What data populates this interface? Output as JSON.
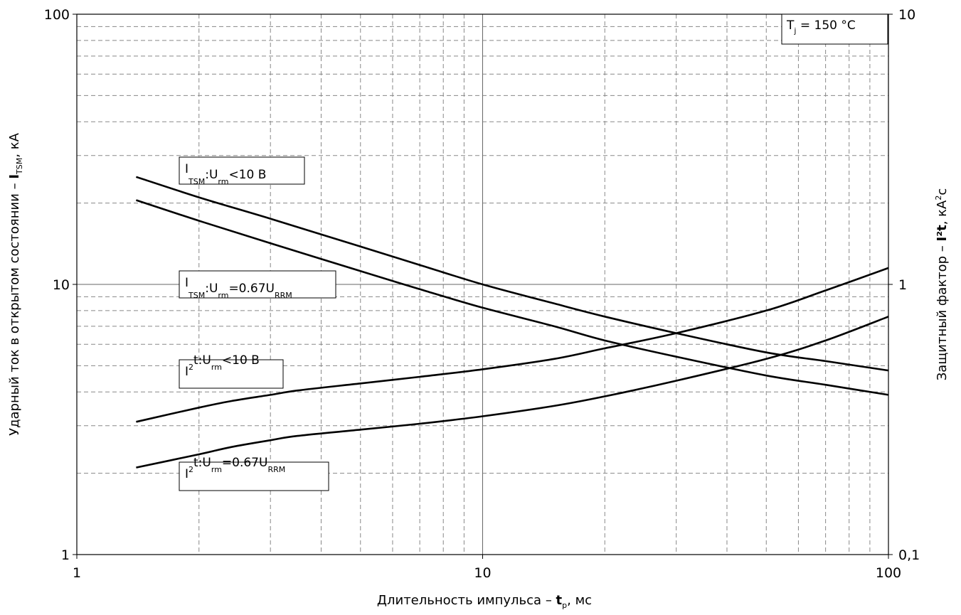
{
  "chart_data": {
    "type": "line",
    "x_scale": "log",
    "y_scale": "log",
    "y2_scale": "log",
    "xlim": [
      1,
      100
    ],
    "ylim": [
      1,
      100
    ],
    "y2lim": [
      0.1,
      10
    ],
    "grid": true,
    "x_ticks": [
      "1",
      "10",
      "100"
    ],
    "y_ticks": [
      "1",
      "10",
      "100"
    ],
    "y2_ticks": [
      "0,1",
      "1",
      "10"
    ],
    "xlabel": {
      "main": "Длительность импульса – ",
      "bold": "t",
      "sub": "p",
      "unit": ", мс"
    },
    "ylabel": {
      "main": "Ударный ток в открытом состоянии – ",
      "bold": "I",
      "sub": "TSM",
      "unit": ", кА"
    },
    "y2label": {
      "main": "Защитный фактор – ",
      "bold": "I²t",
      "unit": ", кА",
      "sup": "2",
      "unit2": "с"
    },
    "tj_box": {
      "main": "T",
      "sub": "j",
      "rest": " = 150 °C"
    },
    "series": [
      {
        "axis": "left",
        "label": {
          "p1": "I",
          "s1": "TSM",
          "p2": ":U",
          "s2": "rm",
          "p3": "<10 В",
          "s3": "",
          "sup": ""
        },
        "x": [
          1.4,
          2,
          3,
          5,
          7,
          10,
          15,
          20,
          30,
          50,
          70,
          100
        ],
        "y": [
          25,
          21,
          17.5,
          13.8,
          11.8,
          10,
          8.5,
          7.6,
          6.6,
          5.6,
          5.2,
          4.8
        ]
      },
      {
        "axis": "left",
        "label": {
          "p1": "I",
          "s1": "TSM",
          "p2": ":U",
          "s2": "rm",
          "p3": "=0.67U",
          "s3": "RRM",
          "sup": ""
        },
        "x": [
          1.4,
          2,
          3,
          5,
          7,
          10,
          15,
          20,
          30,
          50,
          70,
          100
        ],
        "y": [
          20.5,
          17.2,
          14.2,
          11.2,
          9.6,
          8.2,
          7,
          6.2,
          5.4,
          4.6,
          4.25,
          3.9
        ]
      },
      {
        "axis": "right",
        "label": {
          "p1": "I",
          "s1": "",
          "p2": "t:U",
          "s2": "rm",
          "p3": "<10  В",
          "s3": "",
          "sup": "2"
        },
        "x": [
          1.4,
          2,
          2.4,
          3,
          3.5,
          5,
          7,
          10,
          15,
          20,
          30,
          50,
          70,
          100
        ],
        "y": [
          0.31,
          0.35,
          0.37,
          0.39,
          0.405,
          0.43,
          0.455,
          0.485,
          0.53,
          0.58,
          0.66,
          0.8,
          0.95,
          1.15
        ]
      },
      {
        "axis": "right",
        "label": {
          "p1": "I",
          "s1": "",
          "p2": "t:U",
          "s2": "rm",
          "p3": "=0.67U",
          "s3": "RRM",
          "sup": "2"
        },
        "x": [
          1.4,
          2,
          2.4,
          3,
          3.5,
          5,
          7,
          10,
          15,
          20,
          30,
          50,
          70,
          100
        ],
        "y": [
          0.21,
          0.235,
          0.25,
          0.265,
          0.275,
          0.29,
          0.305,
          0.325,
          0.355,
          0.385,
          0.44,
          0.53,
          0.62,
          0.76
        ]
      }
    ]
  }
}
